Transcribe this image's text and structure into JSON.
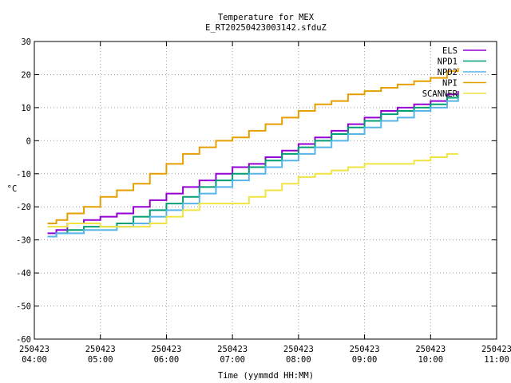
{
  "chart_data": {
    "type": "line",
    "title": "Temperature for MEX",
    "subtitle": "E_RT20250423003142.sfduZ",
    "xlabel": "Time (yymmdd HH:MM)",
    "ylabel": "°C",
    "xlim": [
      "250423 04:00",
      "250423 11:00"
    ],
    "ylim": [
      -60,
      30
    ],
    "grid": true,
    "legend_position": "top-right",
    "x_ticks": [
      {
        "date": "250423",
        "time": "04:00"
      },
      {
        "date": "250423",
        "time": "05:00"
      },
      {
        "date": "250423",
        "time": "06:00"
      },
      {
        "date": "250423",
        "time": "07:00"
      },
      {
        "date": "250423",
        "time": "08:00"
      },
      {
        "date": "250423",
        "time": "09:00"
      },
      {
        "date": "250423",
        "time": "10:00"
      },
      {
        "date": "250423",
        "time": "11:00"
      }
    ],
    "y_ticks": [
      "30",
      "20",
      "10",
      "0",
      "-10",
      "-20",
      "-30",
      "-40",
      "-50",
      "-60"
    ],
    "series": [
      {
        "name": "ELS",
        "color": "#9400d3",
        "x": [
          "04:12",
          "04:20",
          "04:30",
          "04:45",
          "05:00",
          "05:15",
          "05:30",
          "05:45",
          "06:00",
          "06:15",
          "06:30",
          "06:45",
          "07:00",
          "07:15",
          "07:30",
          "07:45",
          "08:00",
          "08:15",
          "08:30",
          "08:45",
          "09:00",
          "09:15",
          "09:30",
          "09:45",
          "10:00",
          "10:15",
          "10:25"
        ],
        "y": [
          -28,
          -27,
          -25,
          -24,
          -23,
          -22,
          -20,
          -18,
          -16,
          -14,
          -12,
          -10,
          -8,
          -7,
          -5,
          -3,
          -1,
          1,
          3,
          5,
          7,
          9,
          10,
          11,
          12,
          14,
          15
        ]
      },
      {
        "name": "NPD1",
        "color": "#009e73",
        "x": [
          "04:12",
          "04:20",
          "04:30",
          "04:45",
          "05:00",
          "05:15",
          "05:30",
          "05:45",
          "06:00",
          "06:15",
          "06:30",
          "06:45",
          "07:00",
          "07:15",
          "07:30",
          "07:45",
          "08:00",
          "08:15",
          "08:30",
          "08:45",
          "09:00",
          "09:15",
          "09:30",
          "09:45",
          "10:00",
          "10:15",
          "10:25"
        ],
        "y": [
          -29,
          -28,
          -27,
          -26,
          -26,
          -25,
          -23,
          -21,
          -19,
          -17,
          -14,
          -12,
          -10,
          -8,
          -6,
          -4,
          -2,
          0,
          2,
          4,
          6,
          8,
          9,
          10,
          11,
          13,
          14
        ]
      },
      {
        "name": "NPD2",
        "color": "#56b4e9",
        "x": [
          "04:12",
          "04:20",
          "04:30",
          "04:45",
          "05:00",
          "05:15",
          "05:30",
          "05:45",
          "06:00",
          "06:15",
          "06:30",
          "06:45",
          "07:00",
          "07:15",
          "07:30",
          "07:45",
          "08:00",
          "08:15",
          "08:30",
          "08:45",
          "09:00",
          "09:15",
          "09:30",
          "09:45",
          "10:00",
          "10:15",
          "10:25"
        ],
        "y": [
          -29,
          -28,
          -28,
          -27,
          -27,
          -26,
          -25,
          -23,
          -21,
          -19,
          -16,
          -14,
          -12,
          -10,
          -8,
          -6,
          -4,
          -2,
          0,
          2,
          4,
          6,
          7,
          9,
          10,
          12,
          13
        ]
      },
      {
        "name": "NPI",
        "color": "#e69f00",
        "x": [
          "04:12",
          "04:20",
          "04:30",
          "04:45",
          "05:00",
          "05:15",
          "05:30",
          "05:45",
          "06:00",
          "06:15",
          "06:30",
          "06:45",
          "07:00",
          "07:15",
          "07:30",
          "07:45",
          "08:00",
          "08:15",
          "08:30",
          "08:45",
          "09:00",
          "09:15",
          "09:30",
          "09:45",
          "10:00",
          "10:15",
          "10:25"
        ],
        "y": [
          -25,
          -24,
          -22,
          -20,
          -17,
          -15,
          -13,
          -10,
          -7,
          -4,
          -2,
          0,
          1,
          3,
          5,
          7,
          9,
          11,
          12,
          14,
          15,
          16,
          17,
          18,
          19,
          21,
          22
        ]
      },
      {
        "name": "SCANNER",
        "color": "#f0e442",
        "x": [
          "04:12",
          "04:30",
          "04:45",
          "05:00",
          "05:15",
          "05:30",
          "05:45",
          "06:00",
          "06:15",
          "06:30",
          "06:45",
          "07:00",
          "07:15",
          "07:30",
          "07:45",
          "08:00",
          "08:15",
          "08:30",
          "08:45",
          "09:00",
          "09:15",
          "09:30",
          "09:45",
          "10:00",
          "10:15",
          "10:25"
        ],
        "y": [
          -26,
          -25,
          -25,
          -26,
          -26,
          -26,
          -25,
          -23,
          -21,
          -19,
          -19,
          -19,
          -17,
          -15,
          -13,
          -11,
          -10,
          -9,
          -8,
          -7,
          -7,
          -7,
          -6,
          -5,
          -4,
          -4
        ]
      }
    ]
  }
}
